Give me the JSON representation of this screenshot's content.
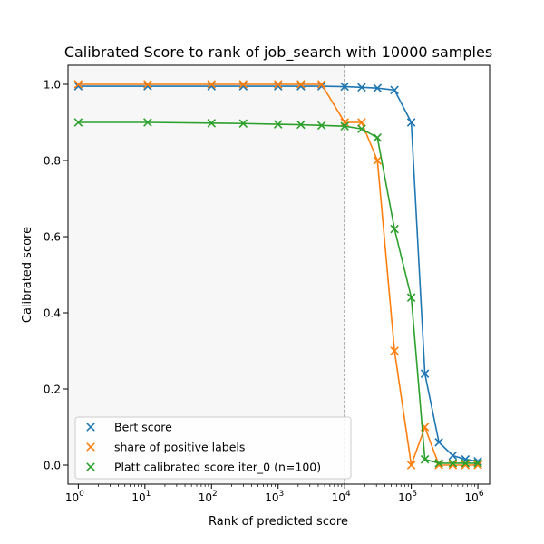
{
  "chart_data": {
    "type": "line",
    "title": "Calibrated Score to rank of job_search with 10000 samples",
    "xlabel": "Rank of predicted score",
    "ylabel": "Calibrated score",
    "xscale": "log",
    "xlim": [
      0.7,
      1500000
    ],
    "ylim": [
      -0.05,
      1.05
    ],
    "grid": false,
    "legend_position": "lower-left",
    "marker": "x",
    "x_ticks": [
      {
        "value": 1,
        "base": "10",
        "exp": "0"
      },
      {
        "value": 10,
        "base": "10",
        "exp": "1"
      },
      {
        "value": 100,
        "base": "10",
        "exp": "2"
      },
      {
        "value": 1000,
        "base": "10",
        "exp": "3"
      },
      {
        "value": 10000,
        "base": "10",
        "exp": "4"
      },
      {
        "value": 100000,
        "base": "10",
        "exp": "5"
      },
      {
        "value": 1000000,
        "base": "10",
        "exp": "6"
      }
    ],
    "y_ticks": [
      0.0,
      0.2,
      0.4,
      0.6,
      0.8,
      1.0
    ],
    "y_tick_labels": [
      "0.0",
      "0.2",
      "0.4",
      "0.6",
      "0.8",
      "1.0"
    ],
    "shaded_region": {
      "x_from": 0.7,
      "x_to": 10000,
      "color": "#f7f7f7"
    },
    "vline": {
      "x": 10000,
      "style": "dashed",
      "color": "#000000"
    },
    "series": [
      {
        "name": "Bert score",
        "color": "#1f77b4",
        "x": [
          1,
          11,
          100,
          300,
          1000,
          2200,
          4500,
          10000,
          18000,
          31000,
          56000,
          100000,
          160000,
          260000,
          420000,
          650000,
          1000000
        ],
        "y": [
          0.995,
          0.995,
          0.995,
          0.995,
          0.995,
          0.995,
          0.995,
          0.994,
          0.992,
          0.99,
          0.985,
          0.9,
          0.24,
          0.06,
          0.025,
          0.015,
          0.01
        ]
      },
      {
        "name": "share of positive labels",
        "color": "#ff7f0e",
        "x": [
          1,
          11,
          100,
          300,
          1000,
          2200,
          4500,
          10000,
          18000,
          31000,
          56000,
          100000,
          160000,
          260000,
          420000,
          650000,
          1000000
        ],
        "y": [
          1.0,
          1.0,
          1.0,
          1.0,
          1.0,
          1.0,
          1.0,
          0.9,
          0.9,
          0.8,
          0.3,
          0.0,
          0.1,
          0.0,
          0.0,
          0.0,
          0.0
        ]
      },
      {
        "name": "Platt calibrated score iter_0 (n=100)",
        "color": "#2ca02c",
        "x": [
          1,
          11,
          100,
          300,
          1000,
          2200,
          4500,
          10000,
          18000,
          31000,
          56000,
          100000,
          160000,
          260000,
          420000,
          650000,
          1000000
        ],
        "y": [
          0.9,
          0.9,
          0.898,
          0.897,
          0.895,
          0.894,
          0.892,
          0.89,
          0.883,
          0.86,
          0.62,
          0.44,
          0.015,
          0.005,
          0.005,
          0.005,
          0.005
        ]
      }
    ]
  }
}
